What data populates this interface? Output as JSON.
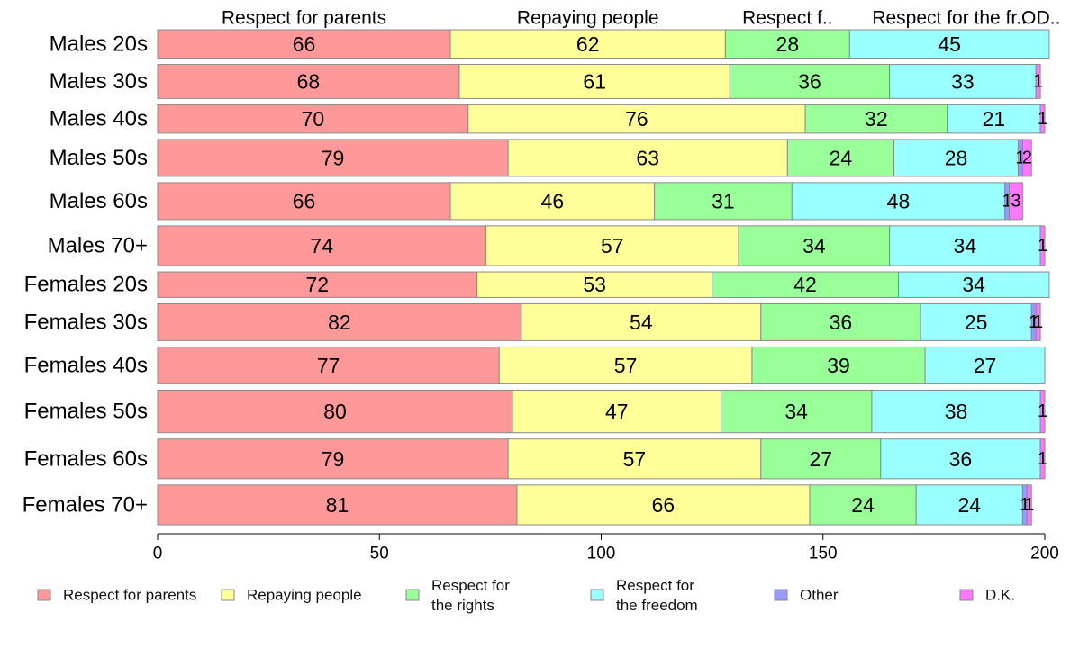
{
  "chart_data": {
    "type": "bar",
    "orientation": "horizontal",
    "stacked": true,
    "categories": [
      "Males 20s",
      "Males 30s",
      "Males 40s",
      "Males 50s",
      "Males 60s",
      "Males 70+",
      "Females 20s",
      "Females 30s",
      "Females 40s",
      "Females 50s",
      "Females 60s",
      "Females 70+"
    ],
    "group_sizes": [
      1.0,
      1.2,
      1.0,
      1.3,
      1.3,
      1.4,
      0.9,
      1.3,
      1.3,
      1.5,
      1.4,
      1.4
    ],
    "series": [
      {
        "name": "Respect for parents",
        "values": [
          66,
          68,
          70,
          79,
          66,
          74,
          72,
          82,
          77,
          80,
          79,
          81
        ],
        "color": "#ff9999"
      },
      {
        "name": "Repaying people",
        "values": [
          62,
          61,
          76,
          63,
          46,
          57,
          53,
          54,
          57,
          47,
          57,
          66
        ],
        "color": "#ffff99"
      },
      {
        "name": "Respect for\nthe rights",
        "values": [
          28,
          36,
          32,
          24,
          31,
          34,
          42,
          36,
          39,
          34,
          27,
          24
        ],
        "color": "#99ff99"
      },
      {
        "name": "Respect for\nthe freedom",
        "values": [
          45,
          33,
          21,
          28,
          48,
          34,
          34,
          25,
          27,
          38,
          36,
          24
        ],
        "color": "#99ffff"
      },
      {
        "name": "Other",
        "values": [
          0,
          0,
          0,
          1,
          1,
          0,
          0,
          1,
          0,
          0,
          0,
          1
        ],
        "color": "#9999ff"
      },
      {
        "name": "D.K.",
        "values": [
          0,
          1,
          1,
          2,
          3,
          1,
          0,
          1,
          0,
          1,
          1,
          1
        ],
        "color": "#ff77ff"
      }
    ],
    "top_labels": [
      "Respect for parents",
      "Repaying people",
      "Respect f..",
      "Respect for the fr..",
      "O..",
      "D.."
    ],
    "xlim": [
      0,
      200
    ],
    "xticks": [
      0,
      50,
      100,
      150,
      200
    ],
    "legend_position": "bottom",
    "grid": false
  }
}
